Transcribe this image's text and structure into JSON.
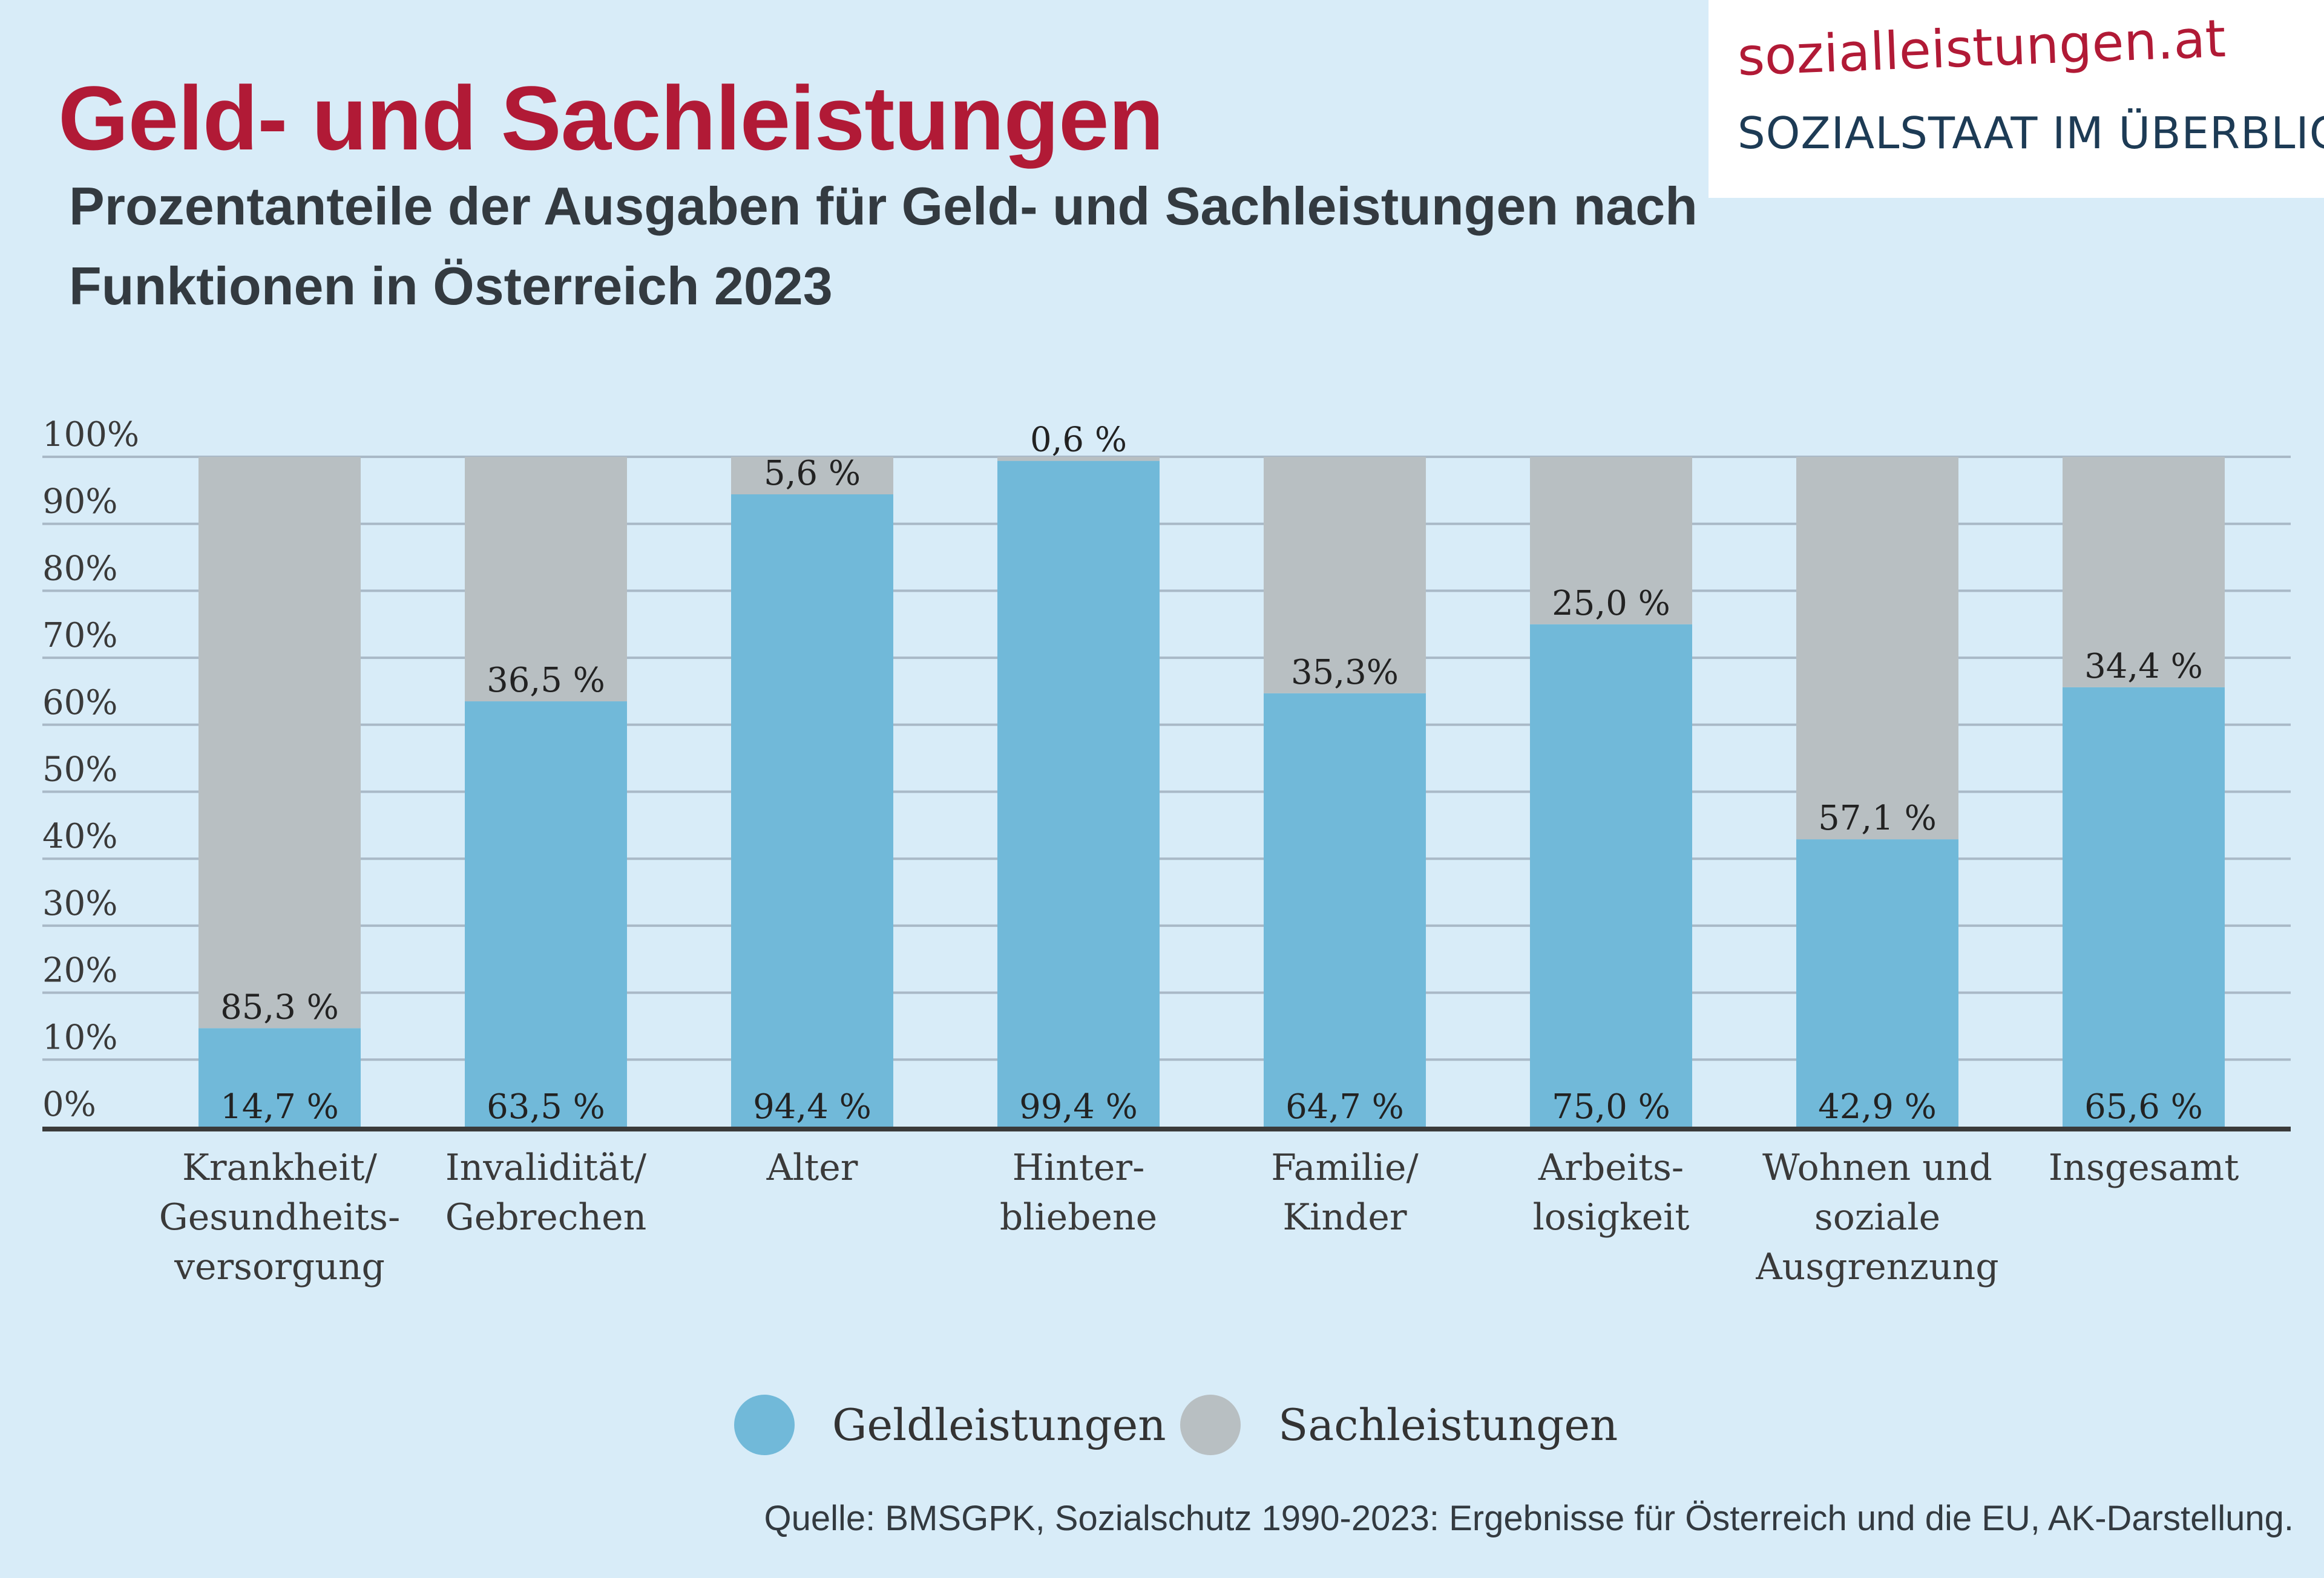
{
  "header": {
    "title": "Geld- und Sachleistungen",
    "subtitle": "Prozentanteile der Ausgaben für Geld- und Sachleistungen nach Funktionen in Österreich 2023"
  },
  "logo": {
    "domain": "sozialleistungen.at",
    "tagline": "SOZIALSTAAT IM ÜBERBLICK"
  },
  "colors": {
    "background": "#d8ecf8",
    "title": "#b11a36",
    "geldleistungen": "#71b9d9",
    "sachleistungen": "#b8bfc2",
    "gridline": "#a9b9c7",
    "axis": "#3a3a3a"
  },
  "legend": {
    "geld": "Geldleistungen",
    "sach": "Sachleistungen"
  },
  "source": "Quelle: BMSGPK, Sozialschutz 1990-2023: Ergebnisse für Österreich und die EU, AK-Darstellung.",
  "chart_data": {
    "type": "bar",
    "stacked": true,
    "title": "Geld- und Sachleistungen",
    "subtitle": "Prozentanteile der Ausgaben für Geld- und Sachleistungen nach Funktionen in Österreich 2023",
    "categories": [
      [
        "Krankheit/",
        "Gesundheits-",
        "versorgung"
      ],
      [
        "Invalidität/",
        "Gebrechen"
      ],
      [
        "Alter"
      ],
      [
        "Hinter-",
        "bliebene"
      ],
      [
        "Familie/",
        "Kinder"
      ],
      [
        "Arbeits-",
        "losigkeit"
      ],
      [
        "Wohnen und",
        "soziale",
        "Ausgrenzung"
      ],
      [
        "Insgesamt"
      ]
    ],
    "series": [
      {
        "name": "Geldleistungen",
        "color": "#71b9d9",
        "values": [
          14.7,
          63.5,
          94.4,
          99.4,
          64.7,
          75.0,
          42.9,
          65.6
        ],
        "labels": [
          "14,7 %",
          "63,5 %",
          "94,4 %",
          "99,4 %",
          "64,7 %",
          "75,0 %",
          "42,9 %",
          "65,6 %"
        ]
      },
      {
        "name": "Sachleistungen",
        "color": "#b8bfc2",
        "values": [
          85.3,
          36.5,
          5.6,
          0.6,
          35.3,
          25.0,
          57.1,
          34.4
        ],
        "labels": [
          "85,3 %",
          "36,5 %",
          "5,6 %",
          "0,6 %",
          "35,3%",
          "25,0 %",
          "57,1 %",
          "34,4 %"
        ]
      }
    ],
    "ylim": [
      0,
      100
    ],
    "yticks": [
      0,
      10,
      20,
      30,
      40,
      50,
      60,
      70,
      80,
      90,
      100
    ],
    "ytick_labels": [
      "0%",
      "10%",
      "20%",
      "30%",
      "40%",
      "50%",
      "60%",
      "70%",
      "80%",
      "90%",
      "100%"
    ],
    "grid": true,
    "legend_position": "bottom-center"
  }
}
